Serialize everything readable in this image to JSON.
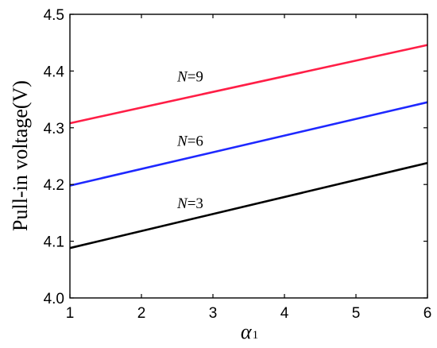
{
  "chart_data": {
    "type": "line",
    "title": "",
    "xlabel": {
      "symbol": "α",
      "subscript": "1"
    },
    "ylabel": "Pull-in voltage(V)",
    "xlim": [
      1,
      6
    ],
    "ylim": [
      4.0,
      4.5
    ],
    "xticks": [
      "1",
      "2",
      "3",
      "4",
      "5",
      "6"
    ],
    "yticks": [
      "4.0",
      "4.1",
      "4.2",
      "4.3",
      "4.4",
      "4.5"
    ],
    "grid": false,
    "series": [
      {
        "name": "N=9",
        "color": "#ff1e46",
        "x": [
          1,
          6
        ],
        "y": [
          4.308,
          4.446
        ]
      },
      {
        "name": "N=6",
        "color": "#1e28ff",
        "x": [
          1,
          6
        ],
        "y": [
          4.198,
          4.345
        ]
      },
      {
        "name": "N=3",
        "color": "#000000",
        "x": [
          1,
          6
        ],
        "y": [
          4.088,
          4.238
        ]
      }
    ],
    "annotations": [
      {
        "var": "N",
        "eq": "=9",
        "x": 2.5,
        "y": 4.382
      },
      {
        "var": "N",
        "eq": "=6",
        "x": 2.5,
        "y": 4.268
      },
      {
        "var": "N",
        "eq": "=3",
        "x": 2.5,
        "y": 4.158
      }
    ]
  }
}
